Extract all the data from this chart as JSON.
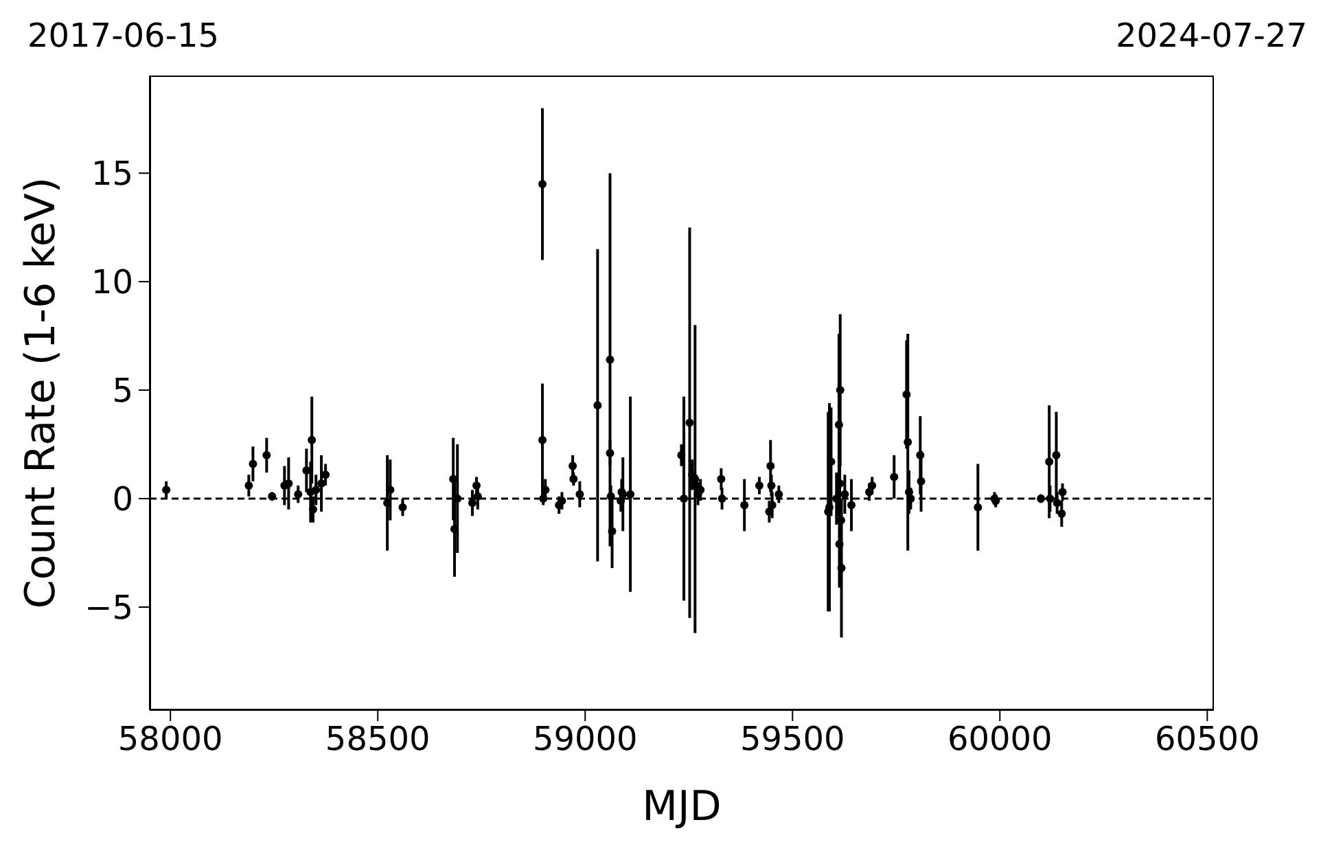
{
  "chart_data": {
    "type": "scatter",
    "xlabel": "MJD",
    "ylabel": "Count Rate (1-6 keV)",
    "annotations": [
      "2017-06-15",
      "2024-07-27"
    ],
    "xlim": [
      57950,
      60516
    ],
    "xticks": [
      58000,
      58500,
      59000,
      59500,
      60000,
      60500
    ],
    "ylim": [
      -9.75,
      19.5
    ],
    "yticks": [
      {
        "value": -5,
        "label": "−5"
      },
      0,
      5,
      10,
      15
    ],
    "marker": "circle",
    "ref_lines": [
      {
        "axis": "y",
        "value": 0,
        "color": "#000000",
        "line_style": "dashed"
      }
    ],
    "series": [
      {
        "color": "#000000",
        "x": [
          57990,
          58189,
          58199,
          58232,
          58245,
          58275,
          58285,
          58308,
          58328,
          58341,
          58338,
          58344,
          58351,
          58364,
          58374,
          58523,
          58530,
          58560,
          58682,
          58685,
          58692,
          58728,
          58738,
          58741,
          58897,
          58897,
          58904,
          58899,
          58937,
          58944,
          58970,
          58972,
          58987,
          59030,
          59060,
          59060,
          59062,
          59065,
          59086,
          59088,
          59091,
          59109,
          59232,
          59238,
          59252,
          59265,
          59258,
          59268,
          59272,
          59278,
          59328,
          59330,
          59384,
          59420,
          59447,
          59449,
          59444,
          59451,
          59467,
          59586,
          59589,
          59593,
          59612,
          59615,
          59614,
          59617,
          59613,
          59618,
          59606,
          59626,
          59642,
          59685,
          59692,
          59745,
          59775,
          59778,
          59781,
          59785,
          59808,
          59810,
          59947,
          59987,
          59990,
          60099,
          60119,
          60121,
          60136,
          60138,
          60151,
          60149
        ],
        "values": [
          0.4,
          0.6,
          1.6,
          2.0,
          0.1,
          0.6,
          0.7,
          0.2,
          1.3,
          2.7,
          0.3,
          -0.5,
          0.4,
          0.7,
          1.1,
          -0.2,
          0.4,
          -0.4,
          0.9,
          -1.4,
          0,
          -0.2,
          0.6,
          0.1,
          14.5,
          2.7,
          0.4,
          0,
          -0.3,
          -0.1,
          1.5,
          0.9,
          0.2,
          4.3,
          6.4,
          2.1,
          0.1,
          -1.5,
          -0.1,
          0.3,
          0.2,
          0.2,
          2.0,
          0,
          3.5,
          0.9,
          1.1,
          0.6,
          0.2,
          0.4,
          0.9,
          0,
          -0.3,
          0.6,
          1.5,
          0.6,
          -0.6,
          -0.3,
          0.2,
          -0.6,
          -0.4,
          1.7,
          3.4,
          5.0,
          0.7,
          -1.0,
          -2.1,
          -3.2,
          0,
          0.2,
          -0.3,
          0.3,
          0.6,
          1.0,
          4.8,
          2.6,
          0.3,
          0,
          2.0,
          0.8,
          -0.4,
          0,
          -0.1,
          0,
          1.7,
          0,
          2.0,
          -0.2,
          0.3,
          -0.7
        ],
        "errors": [
          0.4,
          0.5,
          0.8,
          0.8,
          0.2,
          0.9,
          1.2,
          0.4,
          1.0,
          2.0,
          1.4,
          0.6,
          0.7,
          1.3,
          0.5,
          2.2,
          1.4,
          0.4,
          1.9,
          2.2,
          2.5,
          0.6,
          0.4,
          0.6,
          3.5,
          2.6,
          0.5,
          0.3,
          0.4,
          0.4,
          0.5,
          0.3,
          0.6,
          7.2,
          8.6,
          0.6,
          0.5,
          1.7,
          0.5,
          0.6,
          1.7,
          4.5,
          0.5,
          4.7,
          9.0,
          7.1,
          0.7,
          0.5,
          0.5,
          0.5,
          0.5,
          0.5,
          1.2,
          0.4,
          1.2,
          0.5,
          0.5,
          0.6,
          0.4,
          4.6,
          4.8,
          2.5,
          4.2,
          3.5,
          1.0,
          1.0,
          2.0,
          3.2,
          1.2,
          0.9,
          1.2,
          0.4,
          0.4,
          1.0,
          2.5,
          5.0,
          1.0,
          0.5,
          1.8,
          1.4,
          2.0,
          0.3,
          0.3,
          0.2,
          2.6,
          0.6,
          2.0,
          0.5,
          0.4,
          0.6
        ]
      }
    ]
  }
}
